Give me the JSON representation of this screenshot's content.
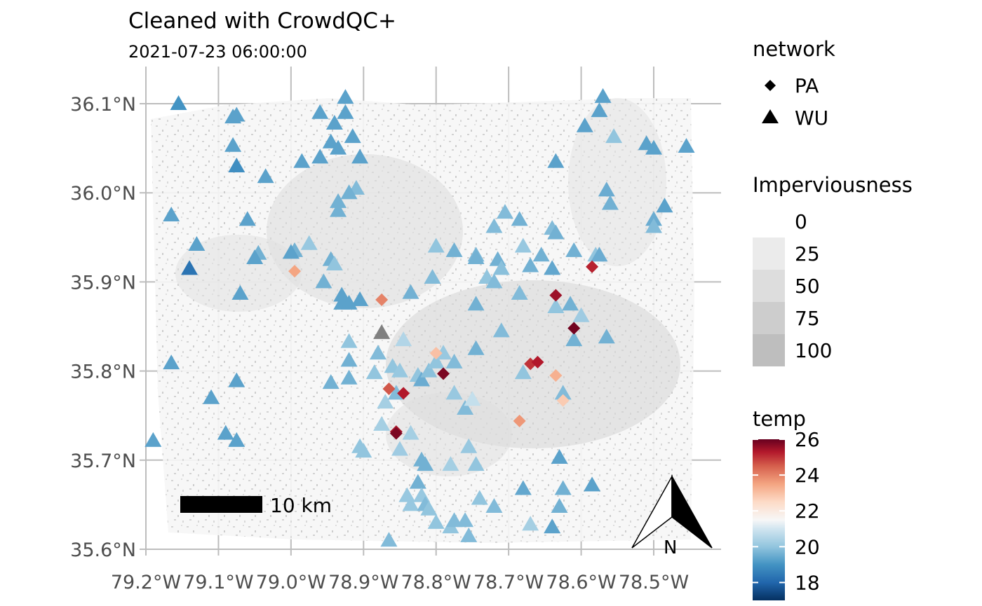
{
  "chart_data": {
    "type": "scatter",
    "title": "Cleaned with CrowdQC+",
    "subtitle": "2021-07-23 06:00:00",
    "xlim": [
      -79.2,
      -78.43
    ],
    "ylim": [
      35.6,
      36.13
    ],
    "x_ticks": [
      -79.2,
      -79.1,
      -79.0,
      -78.9,
      -78.8,
      -78.7,
      -78.6,
      -78.5
    ],
    "x_tick_labels": [
      "79.2°W",
      "79.1°W",
      "79.0°W",
      "78.9°W",
      "78.8°W",
      "78.7°W",
      "78.6°W",
      "78.5°W"
    ],
    "y_ticks": [
      35.6,
      35.7,
      35.8,
      35.9,
      36.0,
      36.1
    ],
    "y_tick_labels": [
      "35.6°N",
      "35.7°N",
      "35.8°N",
      "35.9°N",
      "36.0°N",
      "36.1°N"
    ],
    "grid": true,
    "legend_position": "right",
    "legend_network": {
      "title": "network",
      "entries": [
        {
          "label": "PA",
          "shape": "diamond"
        },
        {
          "label": "WU",
          "shape": "triangle"
        }
      ]
    },
    "legend_imperviousness": {
      "title": "Imperviousness",
      "labels": [
        "0",
        "25",
        "50",
        "75",
        "100"
      ],
      "colors": [
        "#ffffff",
        "#ebebeb",
        "#dddddd",
        "#cdcdcd",
        "#bebebe"
      ]
    },
    "legend_temp": {
      "title": "temp",
      "min": 17,
      "max": 26,
      "ticks": [
        18,
        20,
        22,
        24,
        26
      ],
      "tick_labels": [
        "18",
        "20",
        "22",
        "24",
        "26"
      ],
      "stops": [
        {
          "value": 17,
          "color": "#053061"
        },
        {
          "value": 18,
          "color": "#2166ac"
        },
        {
          "value": 19,
          "color": "#4393c3"
        },
        {
          "value": 20,
          "color": "#92c5de"
        },
        {
          "value": 21,
          "color": "#d1e5f0"
        },
        {
          "value": 21.5,
          "color": "#f7f7f7"
        },
        {
          "value": 22.5,
          "color": "#fddbc7"
        },
        {
          "value": 23.5,
          "color": "#f4a582"
        },
        {
          "value": 24.5,
          "color": "#d6604d"
        },
        {
          "value": 25.3,
          "color": "#b2182b"
        },
        {
          "value": 26,
          "color": "#67001f"
        }
      ],
      "missing_color": "#808080"
    },
    "scale_bar_label": "10 km",
    "north_arrow_label": "N",
    "series": [
      {
        "name": "WU",
        "shape": "triangle",
        "points": [
          [
            -79.155,
            36.1,
            19.0
          ],
          [
            -79.075,
            36.087,
            19.3
          ],
          [
            -79.08,
            36.085,
            19.3
          ],
          [
            -79.08,
            36.053,
            19.3
          ],
          [
            -79.075,
            36.03,
            18.9
          ],
          [
            -79.035,
            36.018,
            19.3
          ],
          [
            -78.96,
            36.09,
            19.3
          ],
          [
            -78.925,
            36.107,
            19.3
          ],
          [
            -78.925,
            36.09,
            19.3
          ],
          [
            -78.94,
            36.078,
            19.3
          ],
          [
            -78.915,
            36.063,
            19.3
          ],
          [
            -78.945,
            36.057,
            19.3
          ],
          [
            -78.935,
            36.05,
            19.3
          ],
          [
            -78.96,
            36.04,
            19.3
          ],
          [
            -78.905,
            36.04,
            19.3
          ],
          [
            -78.985,
            36.035,
            19.3
          ],
          [
            -78.91,
            36.005,
            19.8
          ],
          [
            -78.92,
            36.0,
            19.6
          ],
          [
            -78.935,
            35.99,
            19.6
          ],
          [
            -78.935,
            35.98,
            19.6
          ],
          [
            -79.165,
            35.975,
            19.3
          ],
          [
            -79.06,
            35.97,
            19.3
          ],
          [
            -79.13,
            35.942,
            19.3
          ],
          [
            -79.14,
            35.915,
            18.3
          ],
          [
            -79.045,
            35.932,
            19.6
          ],
          [
            -79.05,
            35.927,
            19.3
          ],
          [
            -78.995,
            35.935,
            19.6
          ],
          [
            -79.0,
            35.933,
            19.3
          ],
          [
            -78.975,
            35.943,
            20.1
          ],
          [
            -78.945,
            35.925,
            19.6
          ],
          [
            -78.94,
            35.92,
            20.0
          ],
          [
            -78.955,
            35.9,
            19.6
          ],
          [
            -79.07,
            35.887,
            19.3
          ],
          [
            -78.93,
            35.885,
            19.3
          ],
          [
            -78.93,
            35.876,
            19.3
          ],
          [
            -78.92,
            35.876,
            19.3
          ],
          [
            -78.905,
            35.88,
            19.3
          ],
          [
            -78.92,
            35.833,
            20.0
          ],
          [
            -78.92,
            35.812,
            19.6
          ],
          [
            -78.92,
            35.792,
            19.6
          ],
          [
            -78.88,
            35.82,
            19.8
          ],
          [
            -78.86,
            35.805,
            20.0
          ],
          [
            -78.85,
            35.8,
            20.1
          ],
          [
            -78.845,
            35.835,
            20.5
          ],
          [
            -78.835,
            35.888,
            19.6
          ],
          [
            -78.945,
            35.787,
            19.6
          ],
          [
            -78.885,
            35.798,
            20.0
          ],
          [
            -78.825,
            35.795,
            20.0
          ],
          [
            -78.82,
            35.79,
            19.5
          ],
          [
            -78.81,
            35.8,
            19.9
          ],
          [
            -78.8,
            35.81,
            20.0
          ],
          [
            -78.79,
            35.82,
            20.1
          ],
          [
            -78.775,
            35.81,
            19.8
          ],
          [
            -78.775,
            35.935,
            19.6
          ],
          [
            -78.8,
            35.94,
            20.0
          ],
          [
            -78.805,
            35.905,
            19.8
          ],
          [
            -78.745,
            35.93,
            19.7
          ],
          [
            -78.745,
            35.927,
            19.6
          ],
          [
            -78.715,
            35.925,
            19.6
          ],
          [
            -78.73,
            35.905,
            20.0
          ],
          [
            -78.72,
            35.9,
            19.8
          ],
          [
            -78.745,
            35.875,
            19.6
          ],
          [
            -78.745,
            35.825,
            19.6
          ],
          [
            -78.71,
            35.915,
            19.9
          ],
          [
            -78.705,
            35.978,
            19.8
          ],
          [
            -78.72,
            35.962,
            19.8
          ],
          [
            -78.685,
            35.97,
            19.6
          ],
          [
            -78.68,
            35.94,
            20.1
          ],
          [
            -78.67,
            35.918,
            19.6
          ],
          [
            -78.685,
            35.887,
            19.8
          ],
          [
            -78.71,
            35.845,
            19.8
          ],
          [
            -78.68,
            35.798,
            20.0
          ],
          [
            -78.655,
            35.93,
            19.6
          ],
          [
            -78.64,
            35.96,
            19.8
          ],
          [
            -78.635,
            35.955,
            19.6
          ],
          [
            -78.64,
            35.915,
            19.4
          ],
          [
            -78.635,
            35.872,
            20.0
          ],
          [
            -78.615,
            35.875,
            19.6
          ],
          [
            -78.61,
            35.935,
            19.6
          ],
          [
            -78.6,
            35.862,
            20.2
          ],
          [
            -78.61,
            35.835,
            19.6
          ],
          [
            -78.565,
            35.838,
            19.6
          ],
          [
            -78.58,
            35.93,
            20.0
          ],
          [
            -78.575,
            35.93,
            19.5
          ],
          [
            -78.565,
            36.003,
            19.5
          ],
          [
            -78.56,
            35.988,
            19.6
          ],
          [
            -78.5,
            35.97,
            19.5
          ],
          [
            -78.5,
            35.962,
            19.8
          ],
          [
            -78.485,
            35.985,
            19.3
          ],
          [
            -78.51,
            36.055,
            19.3
          ],
          [
            -78.5,
            36.05,
            19.3
          ],
          [
            -78.455,
            36.052,
            19.3
          ],
          [
            -78.555,
            36.063,
            20.0
          ],
          [
            -78.595,
            36.075,
            19.3
          ],
          [
            -78.575,
            36.092,
            19.3
          ],
          [
            -78.57,
            36.108,
            19.3
          ],
          [
            -78.635,
            36.035,
            19.3
          ],
          [
            -79.165,
            35.809,
            19.3
          ],
          [
            -79.075,
            35.789,
            19.3
          ],
          [
            -79.11,
            35.77,
            19.3
          ],
          [
            -79.19,
            35.722,
            19.3
          ],
          [
            -79.09,
            35.73,
            19.3
          ],
          [
            -79.075,
            35.722,
            19.3
          ],
          [
            -78.905,
            35.715,
            20.0
          ],
          [
            -78.9,
            35.71,
            20.0
          ],
          [
            -78.85,
            35.712,
            20.2
          ],
          [
            -78.875,
            35.74,
            20.3
          ],
          [
            -78.87,
            35.765,
            20.3
          ],
          [
            -78.855,
            35.775,
            19.8
          ],
          [
            -78.835,
            35.73,
            20.3
          ],
          [
            -78.775,
            35.775,
            20.1
          ],
          [
            -78.76,
            35.758,
            19.8
          ],
          [
            -78.75,
            35.768,
            20.8
          ],
          [
            -78.755,
            35.715,
            20.1
          ],
          [
            -78.745,
            35.695,
            20.0
          ],
          [
            -78.78,
            35.695,
            20.3
          ],
          [
            -78.82,
            35.7,
            19.6
          ],
          [
            -78.815,
            35.695,
            19.6
          ],
          [
            -78.825,
            35.675,
            19.6
          ],
          [
            -78.84,
            35.66,
            20.1
          ],
          [
            -78.835,
            35.65,
            20.1
          ],
          [
            -78.82,
            35.66,
            20.1
          ],
          [
            -78.815,
            35.65,
            19.8
          ],
          [
            -78.81,
            35.645,
            20.0
          ],
          [
            -78.8,
            35.63,
            20.0
          ],
          [
            -78.78,
            35.625,
            20.0
          ],
          [
            -78.775,
            35.632,
            19.8
          ],
          [
            -78.76,
            35.632,
            19.8
          ],
          [
            -78.755,
            35.615,
            19.8
          ],
          [
            -78.74,
            35.657,
            20.0
          ],
          [
            -78.72,
            35.648,
            19.8
          ],
          [
            -78.68,
            35.668,
            19.4
          ],
          [
            -78.67,
            35.628,
            20.3
          ],
          [
            -78.64,
            35.625,
            19.3
          ],
          [
            -78.63,
            35.648,
            19.6
          ],
          [
            -78.625,
            35.668,
            19.6
          ],
          [
            -78.63,
            35.703,
            19.3
          ],
          [
            -78.625,
            35.775,
            19.8
          ],
          [
            -78.585,
            35.672,
            19.3
          ],
          [
            -78.865,
            35.61,
            19.8
          ]
        ]
      },
      {
        "name": "PA",
        "shape": "diamond",
        "points": [
          [
            -78.995,
            35.912,
            23.5
          ],
          [
            -78.875,
            35.88,
            24.0
          ],
          [
            -78.8,
            35.82,
            23.0
          ],
          [
            -78.79,
            35.797,
            25.8
          ],
          [
            -78.865,
            35.78,
            24.6
          ],
          [
            -78.845,
            35.775,
            25.3
          ],
          [
            -78.855,
            35.732,
            25.4
          ],
          [
            -78.855,
            35.73,
            25.8
          ],
          [
            -78.67,
            35.808,
            25.0
          ],
          [
            -78.66,
            35.81,
            25.3
          ],
          [
            -78.635,
            35.795,
            23.3
          ],
          [
            -78.625,
            35.767,
            22.8
          ],
          [
            -78.685,
            35.744,
            23.7
          ],
          [
            -78.635,
            35.885,
            25.5
          ],
          [
            -78.61,
            35.848,
            25.9
          ],
          [
            -78.585,
            35.917,
            25.2
          ]
        ]
      },
      {
        "name": "",
        "shape": "triangle",
        "points": [
          [
            -78.875,
            35.843,
            null
          ]
        ]
      }
    ]
  }
}
